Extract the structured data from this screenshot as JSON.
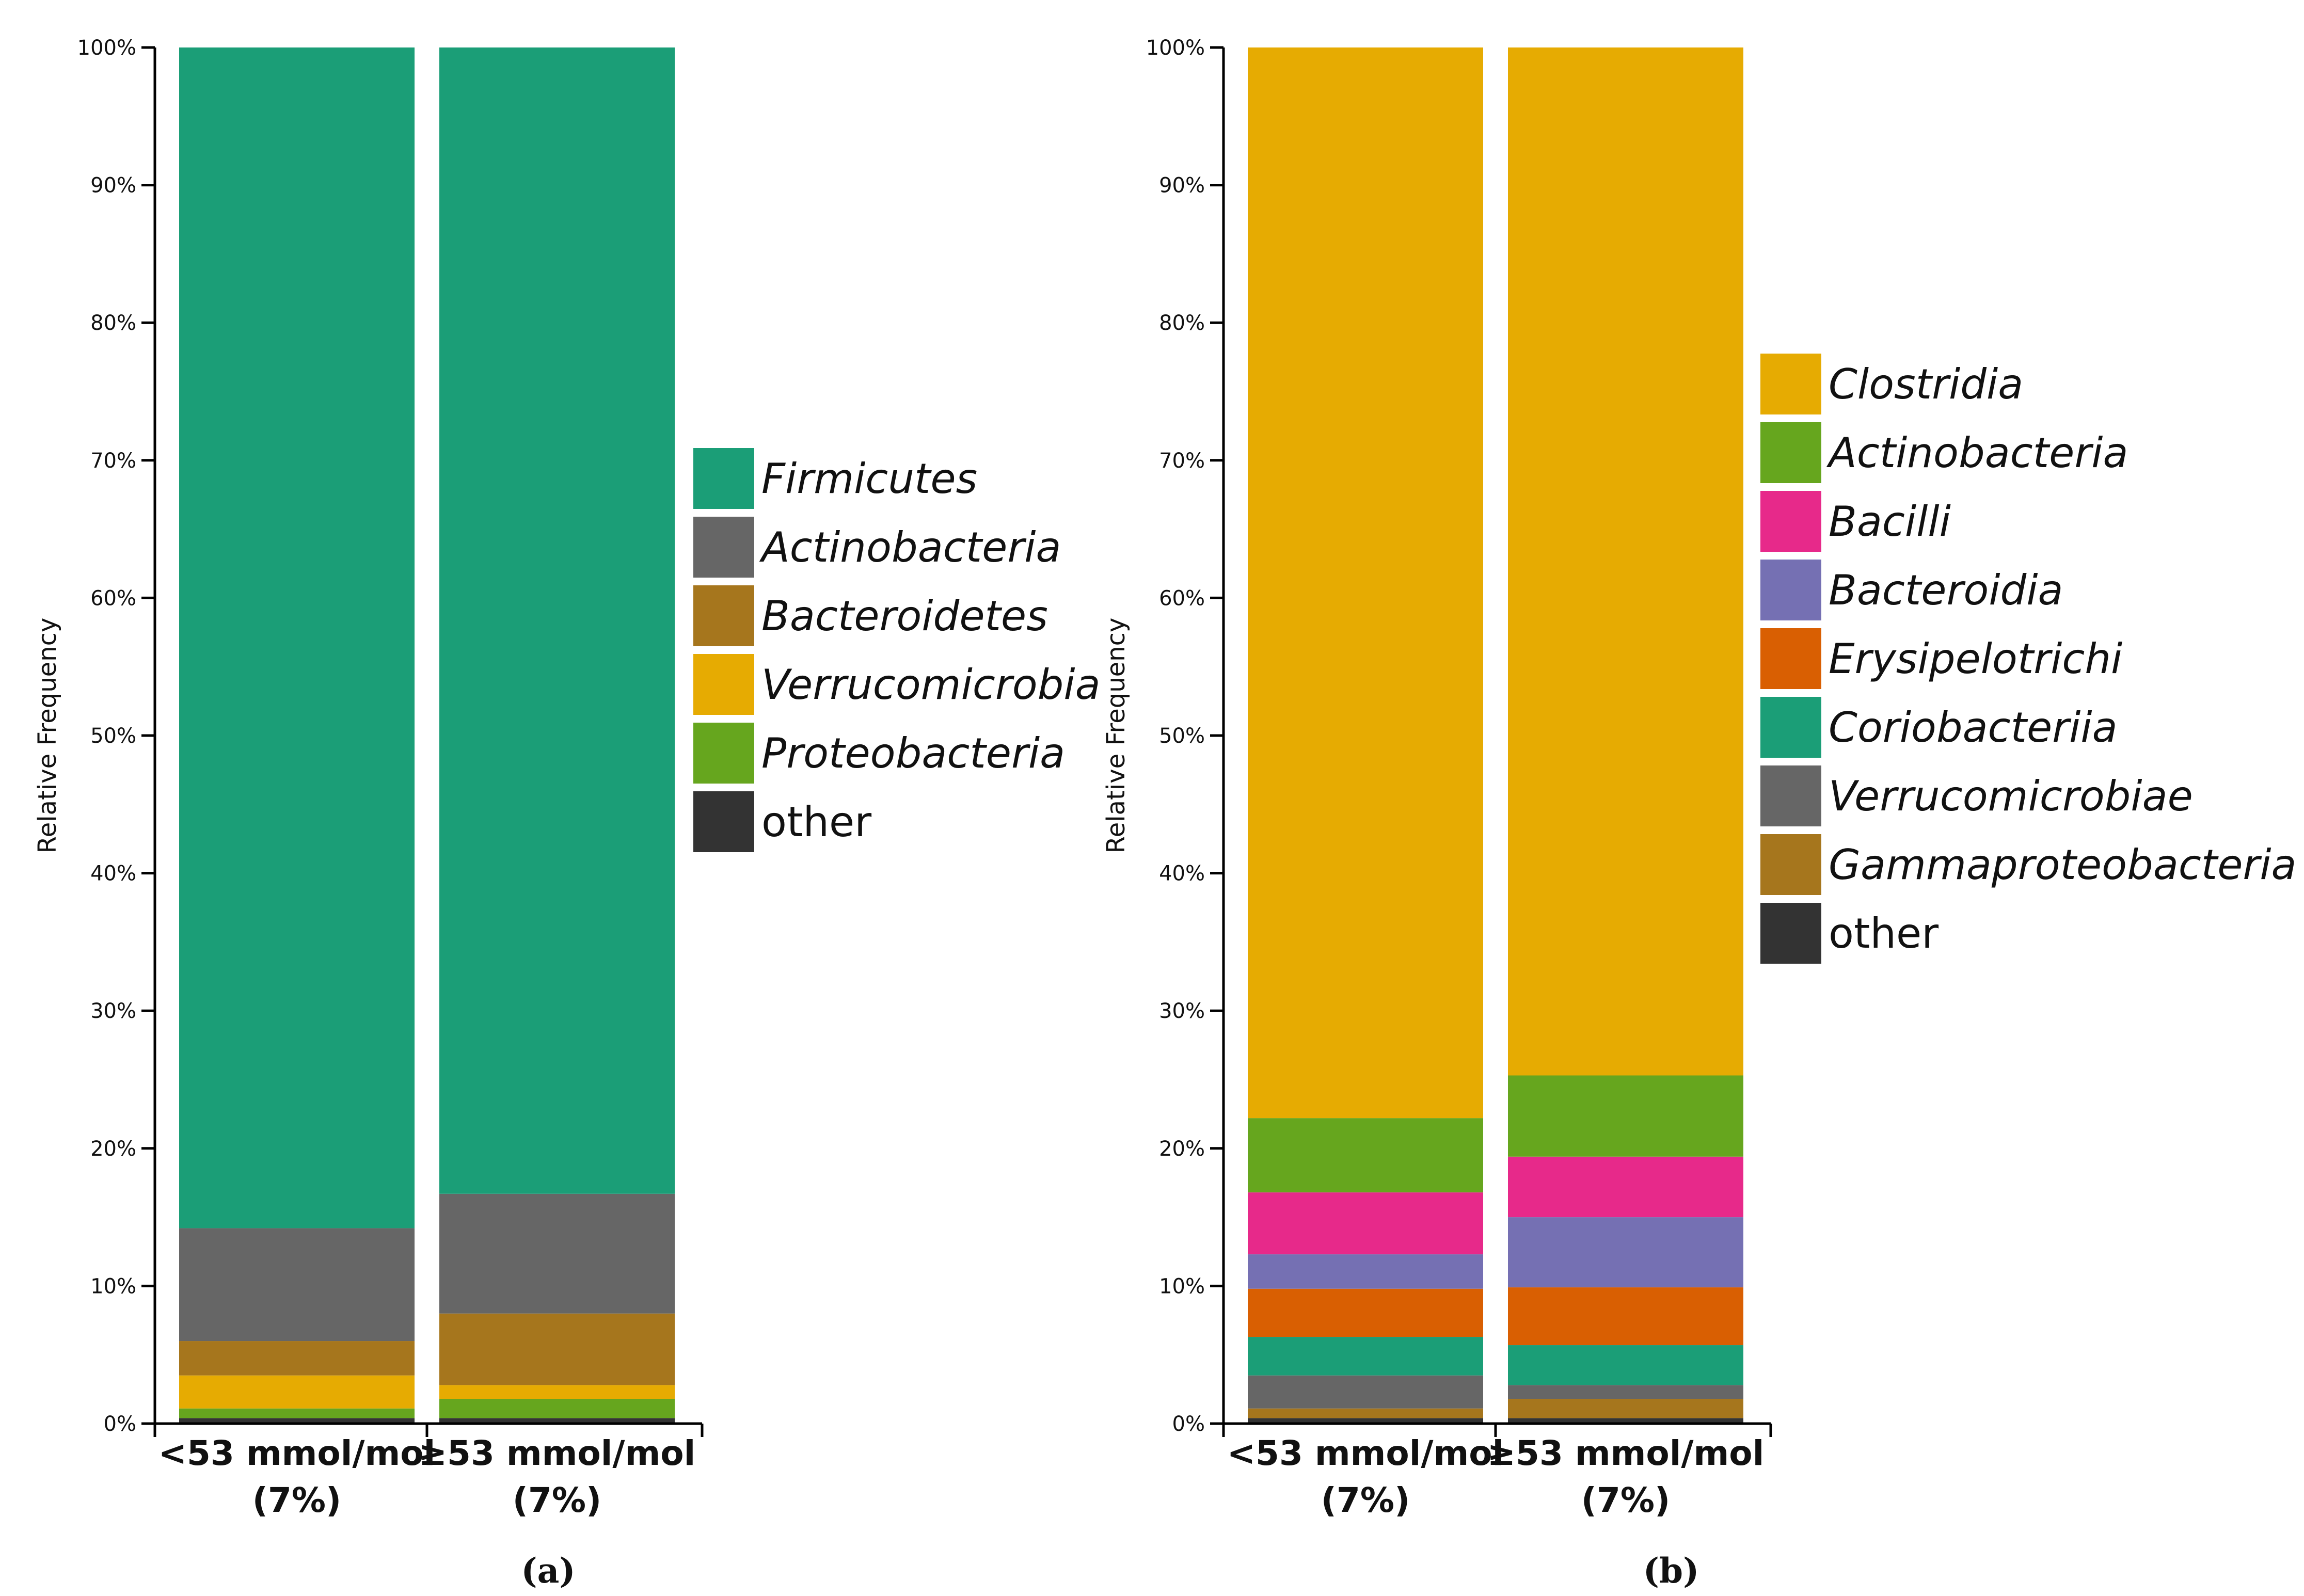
{
  "chart_data": [
    {
      "type": "bar",
      "stacked": true,
      "panel_label": "(a)",
      "ylabel": "Relative Frequency",
      "xlabel": "",
      "ylim": [
        0,
        100
      ],
      "yticks": [
        "0%",
        "10%",
        "20%",
        "30%",
        "40%",
        "50%",
        "60%",
        "70%",
        "80%",
        "90%",
        "100%"
      ],
      "categories": [
        {
          "line1": "<53 mmol/mol",
          "line2": "(7%)"
        },
        {
          "line1": "≥53 mmol/mol",
          "line2": "(7%)"
        }
      ],
      "legend_position": "right",
      "series": [
        {
          "name": "other",
          "italic": false,
          "color": "#333333",
          "values": [
            0.4,
            0.4
          ]
        },
        {
          "name": "Proteobacteria",
          "italic": true,
          "color": "#66a61e",
          "values": [
            0.7,
            1.4
          ]
        },
        {
          "name": "Verrucomicrobia",
          "italic": true,
          "color": "#e6ab02",
          "values": [
            2.4,
            1.0
          ]
        },
        {
          "name": "Bacteroidetes",
          "italic": true,
          "color": "#a6761d",
          "values": [
            2.5,
            5.2
          ]
        },
        {
          "name": "Actinobacteria",
          "italic": true,
          "color": "#666666",
          "values": [
            8.2,
            8.7
          ]
        },
        {
          "name": "Firmicutes",
          "italic": true,
          "color": "#1b9e77",
          "values": [
            85.8,
            83.3
          ]
        }
      ],
      "legend_order": [
        "Firmicutes",
        "Actinobacteria",
        "Bacteroidetes",
        "Verrucomicrobia",
        "Proteobacteria",
        "other"
      ]
    },
    {
      "type": "bar",
      "stacked": true,
      "panel_label": "(b)",
      "ylabel": "Relative Frequency",
      "xlabel": "",
      "ylim": [
        0,
        100
      ],
      "yticks": [
        "0%",
        "10%",
        "20%",
        "30%",
        "40%",
        "50%",
        "60%",
        "70%",
        "80%",
        "90%",
        "100%"
      ],
      "categories": [
        {
          "line1": "<53 mmol/mol",
          "line2": "(7%)"
        },
        {
          "line1": "≥53 mmol/mol",
          "line2": "(7%)"
        }
      ],
      "legend_position": "right",
      "series": [
        {
          "name": "other",
          "italic": false,
          "color": "#333333",
          "values": [
            0.4,
            0.4
          ]
        },
        {
          "name": "Gammaproteobacteria",
          "italic": true,
          "color": "#a6761d",
          "values": [
            0.7,
            1.4
          ]
        },
        {
          "name": "Verrucomicrobiae",
          "italic": true,
          "color": "#666666",
          "values": [
            2.4,
            1.0
          ]
        },
        {
          "name": "Coriobacteriia",
          "italic": true,
          "color": "#1b9e77",
          "values": [
            2.8,
            2.9
          ]
        },
        {
          "name": "Erysipelotrichi",
          "italic": true,
          "color": "#d95f02",
          "values": [
            3.5,
            4.2
          ]
        },
        {
          "name": "Bacteroidia",
          "italic": true,
          "color": "#7570b3",
          "values": [
            2.5,
            5.1
          ]
        },
        {
          "name": "Bacilli",
          "italic": true,
          "color": "#e7298a",
          "values": [
            4.5,
            4.4
          ]
        },
        {
          "name": "Actinobacteria",
          "italic": true,
          "color": "#66a61e",
          "values": [
            5.4,
            5.9
          ]
        },
        {
          "name": "Clostridia",
          "italic": true,
          "color": "#e6ab02",
          "values": [
            77.8,
            74.7
          ]
        }
      ],
      "legend_order": [
        "Clostridia",
        "Actinobacteria",
        "Bacilli",
        "Bacteroidia",
        "Erysipelotrichi",
        "Coriobacteriia",
        "Verrucomicrobiae",
        "Gammaproteobacteria",
        "other"
      ]
    }
  ]
}
